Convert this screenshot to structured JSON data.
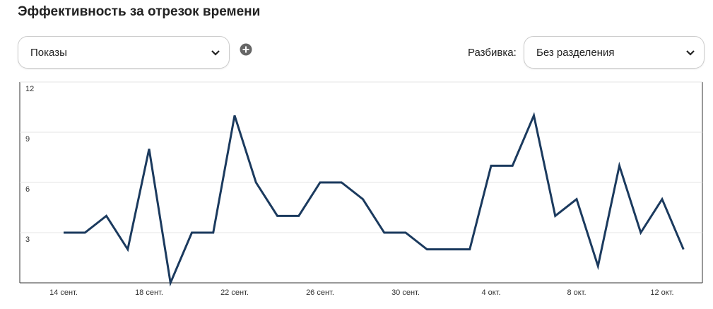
{
  "header": {
    "title": "Эффективность за отрезок времени"
  },
  "controls": {
    "metric": "Показы",
    "breakdown_label": "Разбивка:",
    "breakdown": "Без разделения"
  },
  "chart_data": {
    "type": "line",
    "categories": [
      "14 сент.",
      null,
      null,
      null,
      "18 сент.",
      null,
      null,
      null,
      "22 сент.",
      null,
      null,
      null,
      "26 сент.",
      null,
      null,
      null,
      "30 сент.",
      null,
      null,
      null,
      "4 окт.",
      null,
      null,
      null,
      "8 окт.",
      null,
      null,
      null,
      "12 окт.",
      null
    ],
    "values": [
      3,
      3,
      4,
      2,
      8,
      0,
      3,
      3,
      10,
      6,
      4,
      4,
      6,
      6,
      5,
      3,
      3,
      2,
      2,
      2,
      7,
      7,
      10,
      4,
      5,
      1,
      7,
      3,
      5,
      2
    ],
    "color": "#1b3a5e",
    "ylim": [
      0,
      12
    ],
    "yticks": [
      3,
      6,
      9,
      12
    ],
    "grid": true
  }
}
